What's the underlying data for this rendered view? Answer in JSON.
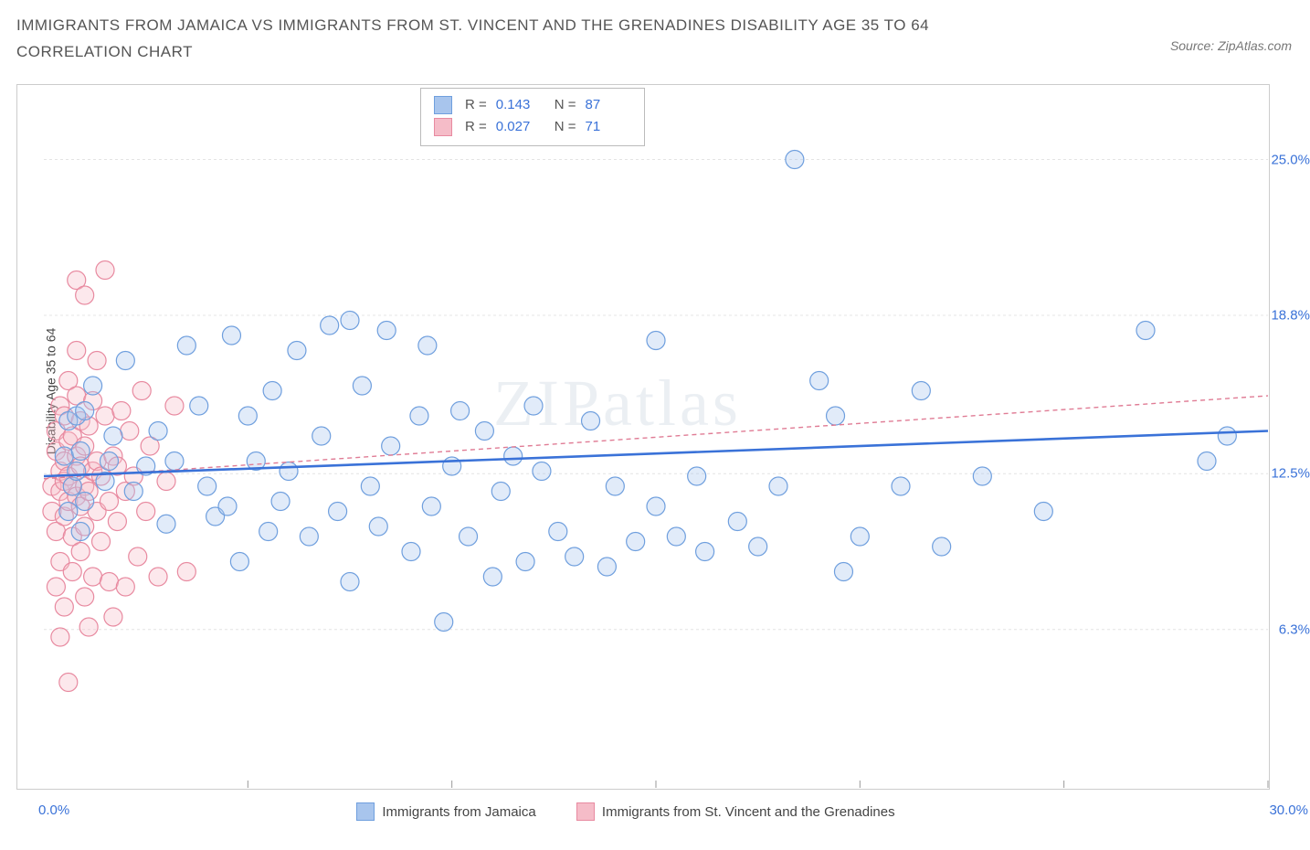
{
  "header": {
    "title": "IMMIGRANTS FROM JAMAICA VS IMMIGRANTS FROM ST. VINCENT AND THE GRENADINES DISABILITY AGE 35 TO 64 CORRELATION CHART",
    "source_prefix": "Source: ",
    "source_name": "ZipAtlas.com"
  },
  "chart": {
    "type": "scatter-with-trend",
    "ylabel": "Disability Age 35 to 64",
    "xlim": [
      0,
      30
    ],
    "ylim": [
      0,
      28
    ],
    "x_min_label": "0.0%",
    "x_max_label": "30.0%",
    "x_ticks": [
      5,
      10,
      15,
      20,
      25,
      30
    ],
    "y_ticks": [
      {
        "v": 6.3,
        "label": "6.3%"
      },
      {
        "v": 12.5,
        "label": "12.5%"
      },
      {
        "v": 18.8,
        "label": "18.8%"
      },
      {
        "v": 25.0,
        "label": "25.0%"
      }
    ],
    "grid_color": "#e4e4e4",
    "grid_dash": "3,3",
    "axis_color": "#999999",
    "background_color": "#ffffff",
    "marker_radius": 10,
    "marker_stroke_width": 1.2,
    "marker_fill_opacity": 0.35,
    "series": [
      {
        "id": "jamaica",
        "label": "Immigrants from Jamaica",
        "color_fill": "#a8c5ed",
        "color_stroke": "#6f9fde",
        "R_label": "R =",
        "R": "0.143",
        "N_label": "N =",
        "N": "87",
        "trend": {
          "x1": 0,
          "y1": 12.4,
          "x2": 30,
          "y2": 14.2,
          "stroke": "#3a72d8",
          "width": 2.6,
          "dash": "none"
        },
        "points": [
          [
            0.5,
            13.2
          ],
          [
            0.6,
            14.6
          ],
          [
            0.6,
            11.0
          ],
          [
            0.7,
            12.0
          ],
          [
            0.8,
            12.6
          ],
          [
            0.8,
            14.8
          ],
          [
            0.9,
            13.4
          ],
          [
            0.9,
            10.2
          ],
          [
            1.0,
            11.4
          ],
          [
            1.0,
            15.0
          ],
          [
            1.2,
            16.0
          ],
          [
            1.5,
            12.2
          ],
          [
            1.6,
            13.0
          ],
          [
            1.7,
            14.0
          ],
          [
            2.0,
            17.0
          ],
          [
            2.2,
            11.8
          ],
          [
            2.5,
            12.8
          ],
          [
            2.8,
            14.2
          ],
          [
            3.0,
            10.5
          ],
          [
            3.2,
            13.0
          ],
          [
            3.5,
            17.6
          ],
          [
            3.8,
            15.2
          ],
          [
            4.0,
            12.0
          ],
          [
            4.2,
            10.8
          ],
          [
            4.5,
            11.2
          ],
          [
            4.6,
            18.0
          ],
          [
            4.8,
            9.0
          ],
          [
            5.0,
            14.8
          ],
          [
            5.2,
            13.0
          ],
          [
            5.5,
            10.2
          ],
          [
            5.6,
            15.8
          ],
          [
            5.8,
            11.4
          ],
          [
            6.0,
            12.6
          ],
          [
            6.2,
            17.4
          ],
          [
            6.5,
            10.0
          ],
          [
            6.8,
            14.0
          ],
          [
            7.0,
            18.4
          ],
          [
            7.2,
            11.0
          ],
          [
            7.5,
            8.2
          ],
          [
            7.5,
            18.6
          ],
          [
            7.8,
            16.0
          ],
          [
            8.0,
            12.0
          ],
          [
            8.2,
            10.4
          ],
          [
            8.4,
            18.2
          ],
          [
            8.5,
            13.6
          ],
          [
            9.0,
            9.4
          ],
          [
            9.2,
            14.8
          ],
          [
            9.4,
            17.6
          ],
          [
            9.5,
            11.2
          ],
          [
            9.8,
            6.6
          ],
          [
            10.0,
            12.8
          ],
          [
            10.2,
            15.0
          ],
          [
            10.4,
            10.0
          ],
          [
            10.8,
            14.2
          ],
          [
            11.0,
            8.4
          ],
          [
            11.2,
            11.8
          ],
          [
            11.5,
            13.2
          ],
          [
            11.8,
            9.0
          ],
          [
            12.0,
            15.2
          ],
          [
            12.2,
            12.6
          ],
          [
            12.6,
            10.2
          ],
          [
            13.0,
            9.2
          ],
          [
            13.4,
            14.6
          ],
          [
            13.8,
            8.8
          ],
          [
            14.0,
            12.0
          ],
          [
            14.5,
            9.8
          ],
          [
            15.0,
            11.2
          ],
          [
            15.0,
            17.8
          ],
          [
            15.5,
            10.0
          ],
          [
            16.0,
            12.4
          ],
          [
            16.2,
            9.4
          ],
          [
            17.0,
            10.6
          ],
          [
            17.5,
            9.6
          ],
          [
            18.0,
            12.0
          ],
          [
            18.4,
            25.0
          ],
          [
            19.0,
            16.2
          ],
          [
            19.4,
            14.8
          ],
          [
            19.6,
            8.6
          ],
          [
            20.0,
            10.0
          ],
          [
            21.0,
            12.0
          ],
          [
            21.5,
            15.8
          ],
          [
            22.0,
            9.6
          ],
          [
            23.0,
            12.4
          ],
          [
            24.5,
            11.0
          ],
          [
            27.0,
            18.2
          ],
          [
            28.5,
            13.0
          ],
          [
            29.0,
            14.0
          ]
        ]
      },
      {
        "id": "stvincent",
        "label": "Immigrants from St. Vincent and the Grenadines",
        "color_fill": "#f5bcc8",
        "color_stroke": "#e88aa0",
        "R_label": "R =",
        "R": "0.027",
        "N_label": "N =",
        "N": "71",
        "trend": {
          "x1": 0,
          "y1": 12.3,
          "x2": 30,
          "y2": 15.6,
          "stroke": "#e07c95",
          "width": 1.4,
          "dash": "5,4"
        },
        "points": [
          [
            0.2,
            12.0
          ],
          [
            0.2,
            11.0
          ],
          [
            0.3,
            13.4
          ],
          [
            0.3,
            10.2
          ],
          [
            0.3,
            14.2
          ],
          [
            0.3,
            8.0
          ],
          [
            0.4,
            12.6
          ],
          [
            0.4,
            11.8
          ],
          [
            0.4,
            15.2
          ],
          [
            0.4,
            9.0
          ],
          [
            0.4,
            6.0
          ],
          [
            0.5,
            13.0
          ],
          [
            0.5,
            12.2
          ],
          [
            0.5,
            10.8
          ],
          [
            0.5,
            14.8
          ],
          [
            0.5,
            7.2
          ],
          [
            0.6,
            11.4
          ],
          [
            0.6,
            13.8
          ],
          [
            0.6,
            12.4
          ],
          [
            0.6,
            16.2
          ],
          [
            0.6,
            4.2
          ],
          [
            0.7,
            12.0
          ],
          [
            0.7,
            10.0
          ],
          [
            0.7,
            14.0
          ],
          [
            0.7,
            8.6
          ],
          [
            0.8,
            11.6
          ],
          [
            0.8,
            13.2
          ],
          [
            0.8,
            15.6
          ],
          [
            0.8,
            17.4
          ],
          [
            0.8,
            20.2
          ],
          [
            0.9,
            12.8
          ],
          [
            0.9,
            11.2
          ],
          [
            0.9,
            9.4
          ],
          [
            0.9,
            14.6
          ],
          [
            1.0,
            12.0
          ],
          [
            1.0,
            10.4
          ],
          [
            1.0,
            13.6
          ],
          [
            1.0,
            7.6
          ],
          [
            1.0,
            19.6
          ],
          [
            1.1,
            11.8
          ],
          [
            1.1,
            14.4
          ],
          [
            1.1,
            6.4
          ],
          [
            1.2,
            12.6
          ],
          [
            1.2,
            8.4
          ],
          [
            1.2,
            15.4
          ],
          [
            1.3,
            11.0
          ],
          [
            1.3,
            13.0
          ],
          [
            1.3,
            17.0
          ],
          [
            1.4,
            12.4
          ],
          [
            1.4,
            9.8
          ],
          [
            1.5,
            14.8
          ],
          [
            1.5,
            20.6
          ],
          [
            1.6,
            11.4
          ],
          [
            1.6,
            8.2
          ],
          [
            1.7,
            13.2
          ],
          [
            1.7,
            6.8
          ],
          [
            1.8,
            12.8
          ],
          [
            1.8,
            10.6
          ],
          [
            1.9,
            15.0
          ],
          [
            2.0,
            11.8
          ],
          [
            2.0,
            8.0
          ],
          [
            2.1,
            14.2
          ],
          [
            2.2,
            12.4
          ],
          [
            2.3,
            9.2
          ],
          [
            2.4,
            15.8
          ],
          [
            2.5,
            11.0
          ],
          [
            2.6,
            13.6
          ],
          [
            2.8,
            8.4
          ],
          [
            3.0,
            12.2
          ],
          [
            3.2,
            15.2
          ],
          [
            3.5,
            8.6
          ]
        ]
      }
    ],
    "watermark": {
      "text_strong": "ZIP",
      "text_light": "atlas"
    }
  },
  "legend_bottom": {
    "items": [
      {
        "series": "jamaica"
      },
      {
        "series": "stvincent"
      }
    ]
  }
}
